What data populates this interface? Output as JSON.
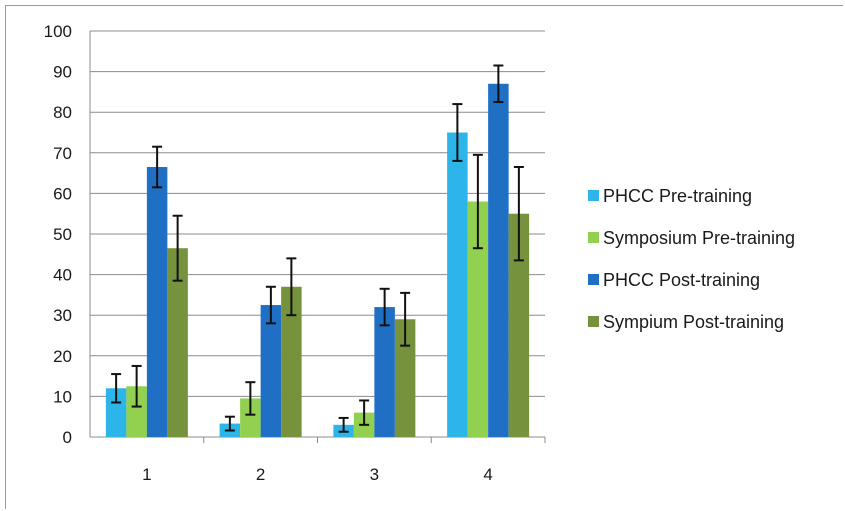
{
  "chart_data": {
    "type": "bar",
    "categories": [
      "1",
      "2",
      "3",
      "4"
    ],
    "ylim": [
      0,
      100
    ],
    "yticks": [
      0,
      10,
      20,
      30,
      40,
      50,
      60,
      70,
      80,
      90,
      100
    ],
    "grid": true,
    "legend_position": "right",
    "series": [
      {
        "name": "PHCC Pre-training",
        "color": "#2DB4E8",
        "values": [
          12,
          3.3,
          3,
          75
        ],
        "errors": [
          3.5,
          1.7,
          1.7,
          7
        ]
      },
      {
        "name": "Symposium Pre-training",
        "color": "#92D050",
        "values": [
          12.5,
          9.5,
          6,
          58
        ],
        "errors": [
          5,
          4,
          3,
          11.5
        ]
      },
      {
        "name": "PHCC Post-training",
        "color": "#1F6FC5",
        "values": [
          66.5,
          32.5,
          32,
          87
        ],
        "errors": [
          5,
          4.5,
          4.5,
          4.5
        ]
      },
      {
        "name": "Sympium Post-training",
        "color": "#76923C",
        "values": [
          46.5,
          37,
          29,
          55
        ],
        "errors": [
          8,
          7,
          6.5,
          11.5
        ]
      }
    ]
  }
}
